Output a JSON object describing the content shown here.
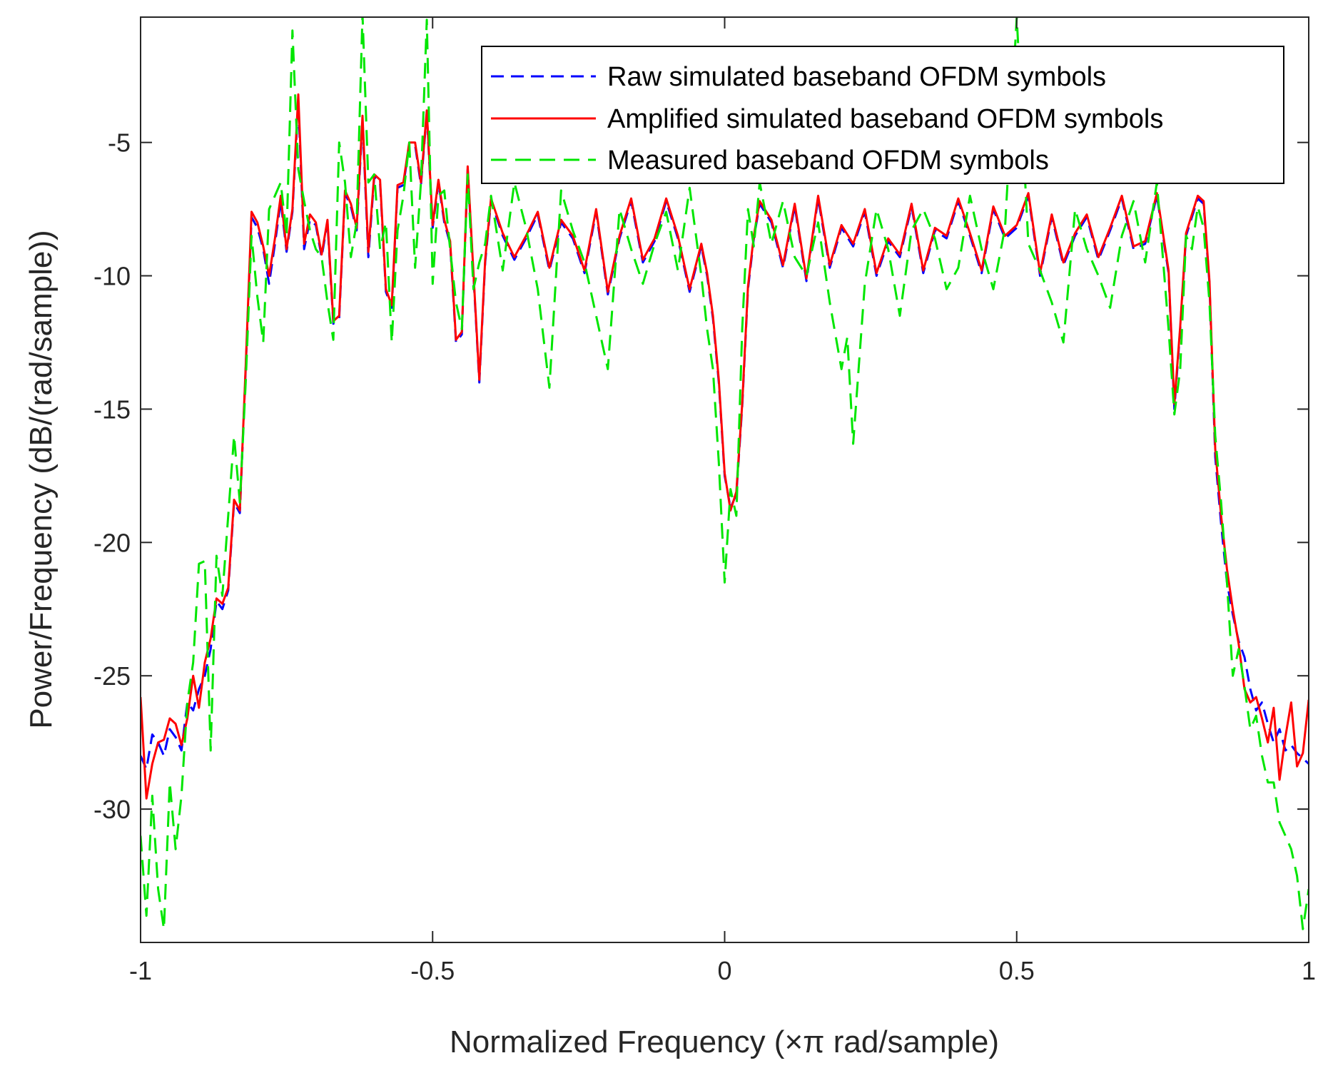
{
  "chart_data": {
    "type": "line",
    "title": "",
    "xlabel": "Normalized Frequency (×π rad/sample)",
    "ylabel": "Power/Frequency (dB/(rad/sample))",
    "xlim": [
      -1,
      1
    ],
    "ylim": [
      -35,
      -0.3
    ],
    "xticks": [
      -1,
      -0.5,
      0,
      0.5,
      1
    ],
    "xtick_labels": [
      "-1",
      "-0.5",
      "0",
      "0.5",
      "1"
    ],
    "yticks": [
      -30,
      -25,
      -20,
      -15,
      -10,
      -5
    ],
    "ytick_labels": [
      "-30",
      "-25",
      "-20",
      "-15",
      "-10",
      "-5"
    ],
    "grid": false,
    "legend_position": "top-right",
    "series": [
      {
        "name": "Raw simulated baseband OFDM symbols",
        "color": "#0000ff",
        "style": "dashed",
        "x": [
          -1.0,
          -0.99,
          -0.98,
          -0.97,
          -0.96,
          -0.95,
          -0.94,
          -0.93,
          -0.92,
          -0.91,
          -0.9,
          -0.89,
          -0.88,
          -0.87,
          -0.86,
          -0.85,
          -0.84,
          -0.83,
          -0.82,
          -0.81,
          -0.8,
          -0.79,
          -0.78,
          -0.77,
          -0.76,
          -0.75,
          -0.74,
          -0.73,
          -0.72,
          -0.71,
          -0.7,
          -0.69,
          -0.68,
          -0.67,
          -0.66,
          -0.65,
          -0.64,
          -0.63,
          -0.62,
          -0.61,
          -0.6,
          -0.59,
          -0.58,
          -0.57,
          -0.56,
          -0.55,
          -0.54,
          -0.53,
          -0.52,
          -0.51,
          -0.5,
          -0.49,
          -0.48,
          -0.47,
          -0.46,
          -0.45,
          -0.44,
          -0.43,
          -0.42,
          -0.41,
          -0.4,
          -0.38,
          -0.36,
          -0.34,
          -0.32,
          -0.3,
          -0.28,
          -0.26,
          -0.24,
          -0.22,
          -0.2,
          -0.18,
          -0.16,
          -0.14,
          -0.12,
          -0.1,
          -0.08,
          -0.06,
          -0.04,
          -0.03,
          -0.02,
          -0.01,
          0.0,
          0.01,
          0.02,
          0.03,
          0.04,
          0.05,
          0.06,
          0.08,
          0.1,
          0.12,
          0.14,
          0.16,
          0.18,
          0.2,
          0.22,
          0.24,
          0.26,
          0.28,
          0.3,
          0.32,
          0.34,
          0.36,
          0.38,
          0.4,
          0.42,
          0.44,
          0.46,
          0.48,
          0.5,
          0.52,
          0.54,
          0.56,
          0.58,
          0.6,
          0.62,
          0.64,
          0.66,
          0.68,
          0.7,
          0.72,
          0.74,
          0.76,
          0.77,
          0.78,
          0.79,
          0.8,
          0.81,
          0.82,
          0.83,
          0.84,
          0.85,
          0.86,
          0.87,
          0.88,
          0.89,
          0.9,
          0.91,
          0.92,
          0.93,
          0.94,
          0.95,
          0.96,
          0.97,
          0.98,
          0.99,
          1.0
        ],
        "y": [
          -28.0,
          -28.5,
          -27.2,
          -27.5,
          -28.0,
          -27.0,
          -27.3,
          -27.8,
          -26.0,
          -26.3,
          -25.5,
          -25.0,
          -24.0,
          -22.2,
          -22.5,
          -21.8,
          -18.5,
          -18.9,
          -13.5,
          -7.8,
          -8.2,
          -9.0,
          -10.3,
          -8.8,
          -7.2,
          -9.1,
          -7.6,
          -3.5,
          -9.0,
          -7.9,
          -8.1,
          -9.3,
          -8.0,
          -11.8,
          -11.6,
          -6.9,
          -7.4,
          -8.3,
          -4.2,
          -9.3,
          -6.3,
          -6.5,
          -10.6,
          -11.2,
          -6.7,
          -6.6,
          -5.1,
          -5.1,
          -6.6,
          -3.9,
          -8.2,
          -6.5,
          -8.0,
          -8.8,
          -12.5,
          -12.2,
          -6.0,
          -10.0,
          -14.0,
          -9.5,
          -7.2,
          -8.5,
          -9.4,
          -8.6,
          -7.7,
          -9.8,
          -8.0,
          -8.6,
          -9.9,
          -7.6,
          -10.7,
          -8.6,
          -7.2,
          -9.5,
          -8.7,
          -7.2,
          -8.6,
          -10.6,
          -8.9,
          -10.0,
          -11.6,
          -14.0,
          -17.5,
          -18.7,
          -18.2,
          -14.9,
          -10.5,
          -8.6,
          -7.3,
          -8.0,
          -9.7,
          -7.4,
          -10.2,
          -7.1,
          -9.7,
          -8.2,
          -8.9,
          -7.6,
          -10.0,
          -8.7,
          -9.3,
          -7.4,
          -9.9,
          -8.3,
          -8.6,
          -7.2,
          -8.5,
          -9.9,
          -7.5,
          -8.6,
          -8.2,
          -7.0,
          -10.0,
          -7.8,
          -9.6,
          -8.5,
          -7.8,
          -9.4,
          -8.3,
          -7.1,
          -9.0,
          -8.8,
          -7.0,
          -9.9,
          -15.0,
          -12.0,
          -8.5,
          -7.8,
          -7.1,
          -7.3,
          -10.3,
          -16.8,
          -19.3,
          -21.5,
          -22.7,
          -23.7,
          -24.3,
          -25.5,
          -26.3,
          -26.0,
          -26.8,
          -27.5,
          -27.0,
          -27.8,
          -27.6,
          -27.9,
          -28.1,
          -28.3
        ]
      },
      {
        "name": "Amplified simulated baseband OFDM symbols",
        "color": "#ff0000",
        "style": "solid",
        "x": [
          -1.0,
          -0.99,
          -0.98,
          -0.97,
          -0.96,
          -0.95,
          -0.94,
          -0.93,
          -0.92,
          -0.91,
          -0.9,
          -0.89,
          -0.88,
          -0.87,
          -0.86,
          -0.85,
          -0.84,
          -0.83,
          -0.82,
          -0.81,
          -0.8,
          -0.79,
          -0.78,
          -0.77,
          -0.76,
          -0.75,
          -0.74,
          -0.73,
          -0.72,
          -0.71,
          -0.7,
          -0.69,
          -0.68,
          -0.67,
          -0.66,
          -0.65,
          -0.64,
          -0.63,
          -0.62,
          -0.61,
          -0.6,
          -0.59,
          -0.58,
          -0.57,
          -0.56,
          -0.55,
          -0.54,
          -0.53,
          -0.52,
          -0.51,
          -0.5,
          -0.49,
          -0.48,
          -0.47,
          -0.46,
          -0.45,
          -0.44,
          -0.43,
          -0.42,
          -0.41,
          -0.4,
          -0.38,
          -0.36,
          -0.34,
          -0.32,
          -0.3,
          -0.28,
          -0.26,
          -0.24,
          -0.22,
          -0.2,
          -0.18,
          -0.16,
          -0.14,
          -0.12,
          -0.1,
          -0.08,
          -0.06,
          -0.04,
          -0.03,
          -0.02,
          -0.01,
          0.0,
          0.01,
          0.02,
          0.03,
          0.04,
          0.05,
          0.06,
          0.08,
          0.1,
          0.12,
          0.14,
          0.16,
          0.18,
          0.2,
          0.22,
          0.24,
          0.26,
          0.28,
          0.3,
          0.32,
          0.34,
          0.36,
          0.38,
          0.4,
          0.42,
          0.44,
          0.46,
          0.48,
          0.5,
          0.52,
          0.54,
          0.56,
          0.58,
          0.6,
          0.62,
          0.64,
          0.66,
          0.68,
          0.7,
          0.72,
          0.74,
          0.76,
          0.77,
          0.78,
          0.79,
          0.8,
          0.81,
          0.82,
          0.83,
          0.84,
          0.85,
          0.86,
          0.87,
          0.88,
          0.89,
          0.9,
          0.91,
          0.92,
          0.93,
          0.94,
          0.95,
          0.96,
          0.97,
          0.98,
          0.99,
          1.0
        ],
        "y": [
          -25.8,
          -29.6,
          -28.3,
          -27.5,
          -27.4,
          -26.6,
          -26.8,
          -27.6,
          -26.6,
          -25.0,
          -26.2,
          -24.5,
          -23.6,
          -22.1,
          -22.3,
          -21.7,
          -18.4,
          -18.8,
          -13.4,
          -7.6,
          -8.0,
          -8.9,
          -10.0,
          -8.6,
          -7.0,
          -9.0,
          -7.5,
          -3.2,
          -8.8,
          -7.7,
          -8.0,
          -9.2,
          -7.9,
          -11.7,
          -11.5,
          -6.8,
          -7.3,
          -8.2,
          -4.0,
          -9.1,
          -6.2,
          -6.4,
          -10.5,
          -11.1,
          -6.6,
          -6.5,
          -5.0,
          -5.0,
          -6.5,
          -3.8,
          -8.1,
          -6.4,
          -7.9,
          -8.7,
          -12.4,
          -12.1,
          -5.9,
          -9.9,
          -13.9,
          -9.4,
          -7.1,
          -8.4,
          -9.3,
          -8.5,
          -7.6,
          -9.7,
          -7.9,
          -8.5,
          -9.8,
          -7.5,
          -10.6,
          -8.5,
          -7.1,
          -9.4,
          -8.6,
          -7.1,
          -8.5,
          -10.5,
          -8.8,
          -9.9,
          -11.5,
          -13.9,
          -17.4,
          -18.8,
          -18.1,
          -14.8,
          -10.4,
          -8.5,
          -7.2,
          -7.9,
          -9.6,
          -7.3,
          -10.1,
          -7.0,
          -9.6,
          -8.1,
          -8.8,
          -7.5,
          -9.9,
          -8.6,
          -9.2,
          -7.3,
          -9.8,
          -8.2,
          -8.5,
          -7.1,
          -8.4,
          -9.8,
          -7.4,
          -8.5,
          -8.1,
          -6.9,
          -9.9,
          -7.7,
          -9.5,
          -8.4,
          -7.7,
          -9.3,
          -8.2,
          -7.0,
          -8.9,
          -8.7,
          -6.9,
          -9.8,
          -14.8,
          -11.9,
          -8.4,
          -7.7,
          -7.0,
          -7.2,
          -10.2,
          -16.5,
          -19.0,
          -21.0,
          -22.5,
          -23.8,
          -25.5,
          -26.0,
          -25.8,
          -26.6,
          -27.5,
          -26.2,
          -28.9,
          -27.3,
          -26.0,
          -28.4,
          -27.9,
          -25.9
        ]
      },
      {
        "name": "Measured baseband OFDM symbols",
        "color": "#00e600",
        "style": "dashed",
        "x": [
          -1.0,
          -0.99,
          -0.98,
          -0.97,
          -0.96,
          -0.95,
          -0.94,
          -0.93,
          -0.92,
          -0.91,
          -0.9,
          -0.89,
          -0.88,
          -0.87,
          -0.86,
          -0.85,
          -0.84,
          -0.83,
          -0.82,
          -0.81,
          -0.8,
          -0.79,
          -0.78,
          -0.77,
          -0.76,
          -0.75,
          -0.74,
          -0.73,
          -0.72,
          -0.71,
          -0.7,
          -0.69,
          -0.68,
          -0.67,
          -0.66,
          -0.65,
          -0.64,
          -0.63,
          -0.62,
          -0.61,
          -0.6,
          -0.59,
          -0.58,
          -0.57,
          -0.56,
          -0.55,
          -0.54,
          -0.53,
          -0.52,
          -0.51,
          -0.5,
          -0.49,
          -0.48,
          -0.47,
          -0.46,
          -0.45,
          -0.44,
          -0.43,
          -0.42,
          -0.41,
          -0.4,
          -0.38,
          -0.36,
          -0.34,
          -0.32,
          -0.3,
          -0.28,
          -0.26,
          -0.24,
          -0.22,
          -0.2,
          -0.18,
          -0.16,
          -0.14,
          -0.12,
          -0.1,
          -0.08,
          -0.06,
          -0.04,
          -0.03,
          -0.02,
          -0.01,
          0.0,
          0.01,
          0.02,
          0.03,
          0.04,
          0.05,
          0.06,
          0.08,
          0.1,
          0.12,
          0.14,
          0.16,
          0.18,
          0.2,
          0.21,
          0.22,
          0.24,
          0.26,
          0.28,
          0.3,
          0.32,
          0.34,
          0.36,
          0.38,
          0.4,
          0.42,
          0.44,
          0.46,
          0.48,
          0.5,
          0.52,
          0.54,
          0.56,
          0.58,
          0.6,
          0.62,
          0.64,
          0.66,
          0.68,
          0.7,
          0.72,
          0.74,
          0.76,
          0.77,
          0.78,
          0.79,
          0.8,
          0.81,
          0.82,
          0.83,
          0.84,
          0.85,
          0.86,
          0.87,
          0.88,
          0.89,
          0.9,
          0.91,
          0.92,
          0.93,
          0.94,
          0.95,
          0.96,
          0.97,
          0.98,
          0.99,
          1.0
        ],
        "y": [
          -31.0,
          -34.0,
          -29.5,
          -33.0,
          -34.5,
          -29.0,
          -31.5,
          -29.5,
          -26.0,
          -24.5,
          -20.8,
          -20.7,
          -27.8,
          -20.5,
          -22.0,
          -19.0,
          -16.0,
          -18.5,
          -14.0,
          -8.5,
          -10.8,
          -12.5,
          -7.5,
          -7.0,
          -6.5,
          -8.5,
          -0.8,
          -6.0,
          -7.2,
          -8.3,
          -9.0,
          -9.3,
          -11.0,
          -12.4,
          -5.0,
          -6.5,
          -9.3,
          -8.0,
          -0.2,
          -6.5,
          -6.2,
          -9.0,
          -8.0,
          -12.5,
          -8.3,
          -7.0,
          -5.0,
          -9.7,
          -6.5,
          -0.4,
          -10.3,
          -7.0,
          -6.8,
          -9.0,
          -11.0,
          -12.0,
          -6.2,
          -10.5,
          -9.5,
          -8.8,
          -7.0,
          -9.8,
          -6.5,
          -8.2,
          -10.5,
          -14.2,
          -6.8,
          -8.3,
          -9.5,
          -11.5,
          -13.5,
          -7.5,
          -9.0,
          -10.3,
          -8.8,
          -7.6,
          -9.8,
          -6.7,
          -10.0,
          -12.0,
          -13.5,
          -17.0,
          -21.5,
          -18.0,
          -19.0,
          -12.0,
          -7.5,
          -8.9,
          -6.5,
          -8.8,
          -7.2,
          -9.3,
          -10.0,
          -8.0,
          -11.0,
          -13.5,
          -12.3,
          -16.3,
          -10.3,
          -7.5,
          -9.0,
          -11.5,
          -8.3,
          -7.5,
          -8.6,
          -10.5,
          -9.7,
          -7.0,
          -9.0,
          -10.5,
          -8.2,
          -0.3,
          -8.8,
          -9.8,
          -11.0,
          -12.5,
          -7.5,
          -9.0,
          -10.0,
          -11.2,
          -8.5,
          -7.2,
          -9.5,
          -6.5,
          -12.0,
          -15.2,
          -13.5,
          -8.5,
          -9.0,
          -7.4,
          -8.2,
          -11.0,
          -16.0,
          -18.5,
          -21.5,
          -25.0,
          -24.0,
          -25.4,
          -27.0,
          -26.5,
          -28.0,
          -29.0,
          -29.0,
          -30.5,
          -31.0,
          -31.5,
          -32.5,
          -34.5,
          -33.0
        ]
      }
    ]
  }
}
